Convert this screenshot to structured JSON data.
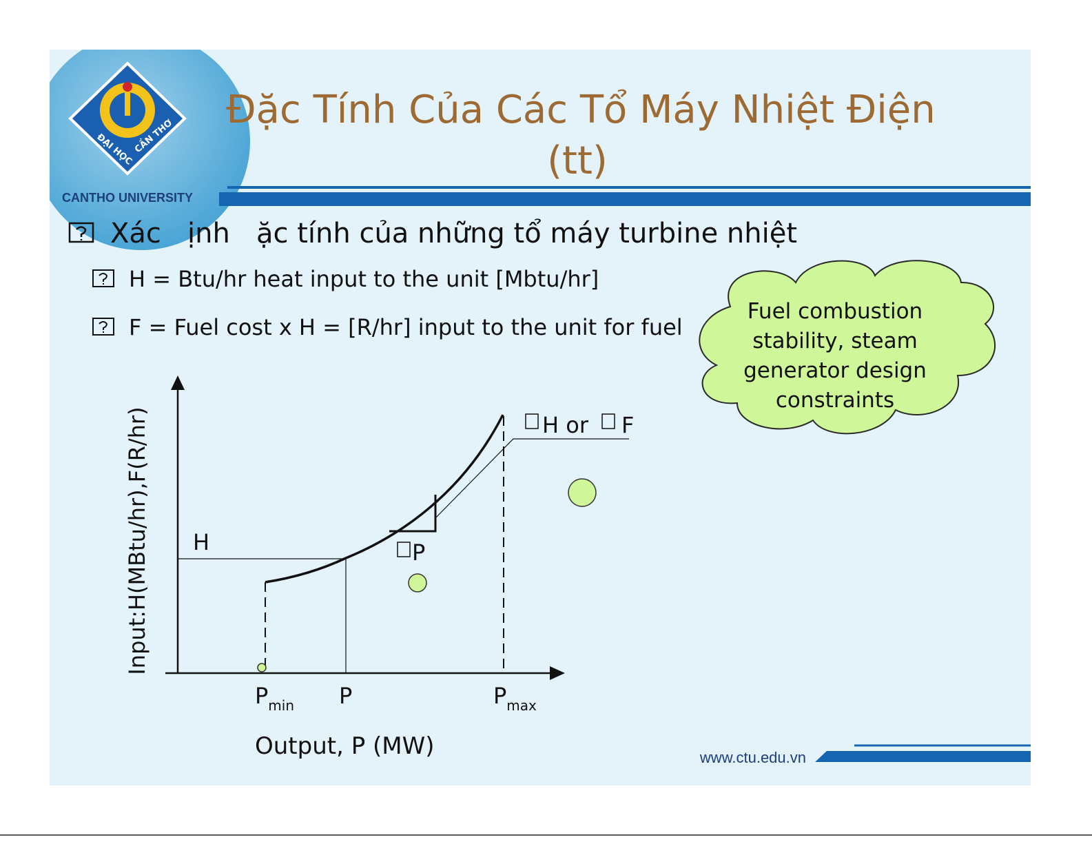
{
  "logo": {
    "arc_left": "ĐẠI HỌC",
    "arc_right": "CẦN THƠ",
    "caption": "CANTHO UNIVERSITY"
  },
  "header": {
    "title_lines": [
      "Đặc Tính Của Các Tổ Máy Nhiệt Điện",
      "(tt)"
    ]
  },
  "bullet": {
    "text": "Xác   ịnh   ặc tính của những tổ máy turbine nhiệt",
    "subitems": [
      "H = Btu/hr heat input to the unit [Mbtu/hr]",
      "F = Fuel cost x H = [R/hr] input to the unit for fuel"
    ]
  },
  "callout": {
    "lines": [
      "Fuel combustion",
      "stability, steam",
      "generator design",
      "constraints"
    ]
  },
  "diagram": {
    "y_axis_label": "Input:H(MBtu/hr),F(R/hr)",
    "x_axis_label": "Output, P (MW)",
    "h_label": "H",
    "x_marks": [
      {
        "text": "P",
        "sub": "min"
      },
      {
        "text": "P",
        "sub": null
      },
      {
        "text": "P",
        "sub": "max"
      }
    ],
    "slope_label": {
      "part1": "H or",
      "part2": "F"
    },
    "delta_p_label": "P"
  },
  "footer": {
    "url": "www.ctu.edu.vn"
  }
}
